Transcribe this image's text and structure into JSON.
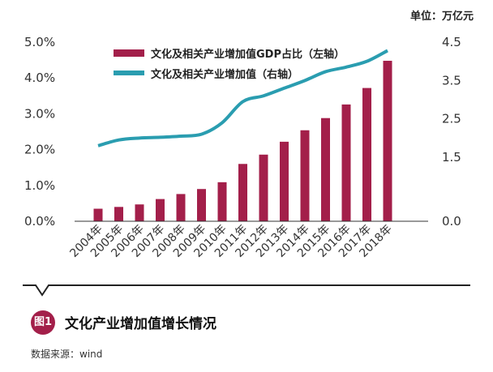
{
  "unit_label": "单位：万亿元",
  "figure": {
    "badge": "图1",
    "title": "文化产业增加值增长情况"
  },
  "source": "数据来源：wind",
  "colors": {
    "bar": "#a31f4a",
    "line": "#2a9db0",
    "axis": "#222222"
  },
  "chart_data": {
    "type": "bar",
    "categories": [
      "2004年",
      "2005年",
      "2006年",
      "2007年",
      "2008年",
      "2009年",
      "2010年",
      "2011年",
      "2012年",
      "2013年",
      "2014年",
      "2015年",
      "2016年",
      "2017年",
      "2018年"
    ],
    "series": [
      {
        "name": "文化及相关产业增加值GDP占比（左轴）",
        "type": "bar",
        "axis": "left",
        "values": [
          0.35,
          0.4,
          0.47,
          0.62,
          0.76,
          0.9,
          1.09,
          1.6,
          1.86,
          2.22,
          2.54,
          2.88,
          3.26,
          3.72,
          4.48
        ]
      },
      {
        "name": "文化及相关产业增加值（右轴）",
        "type": "line",
        "axis": "right",
        "values": [
          1.8,
          1.95,
          2.0,
          2.02,
          2.05,
          2.1,
          2.4,
          2.95,
          3.1,
          3.3,
          3.5,
          3.73,
          3.85,
          4.0,
          4.28
        ]
      }
    ],
    "left_axis": {
      "ticks": [
        "0.0%",
        "1.0%",
        "2.0%",
        "3.0%",
        "4.0%",
        "5.0%"
      ],
      "range": [
        0,
        5
      ]
    },
    "right_axis": {
      "ticks": [
        "0.0",
        "1.5",
        "2.5",
        "3.5",
        "4.5"
      ]
    },
    "legend_position": "top",
    "grid": false
  }
}
